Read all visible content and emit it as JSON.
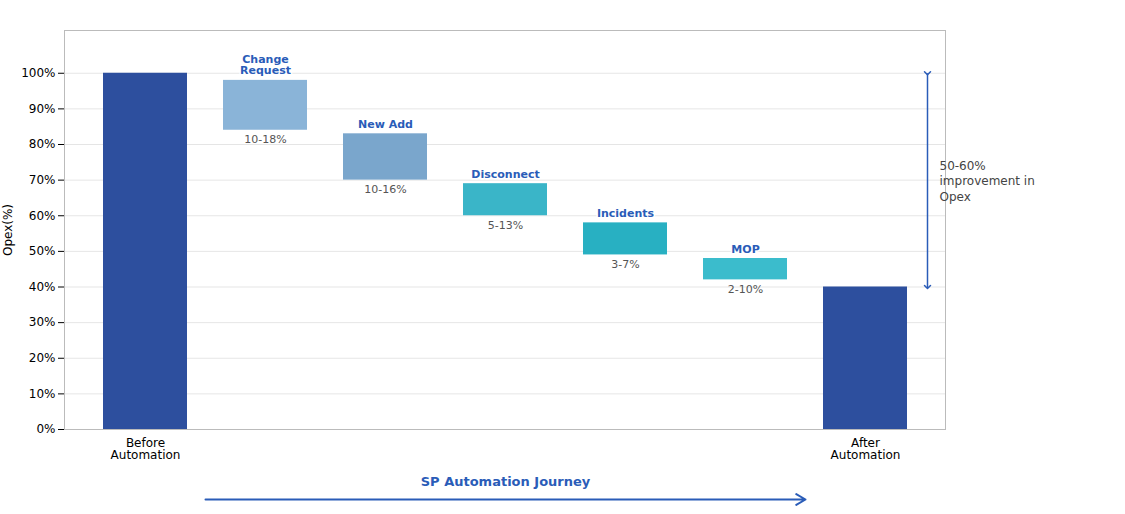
{
  "chart_data": {
    "type": "waterfall",
    "categories": [
      "Before\nAutomation",
      null,
      null,
      null,
      null,
      null,
      "After\nAutomation"
    ],
    "values": [
      100,
      14,
      13,
      9,
      9,
      6,
      40
    ],
    "bottoms": [
      0,
      84,
      70,
      60,
      49,
      42,
      0
    ],
    "colors": [
      "#2d4f9e",
      "#8ab4d8",
      "#7aa6cc",
      "#3ab5c8",
      "#28b0c2",
      "#3bbccc",
      "#2d4f9e"
    ],
    "range_labels": [
      null,
      "10-18%",
      "10-16%",
      "5-13%",
      "3-7%",
      "2-10%",
      null
    ],
    "callouts": {
      "labels": [
        null,
        "Change\nRequest",
        "New Add",
        "Disconnect",
        "Incidents",
        "MOP",
        null
      ],
      "color": "#2a5cb8"
    },
    "improvement": {
      "text": "50-60%\nimprovement in\nOpex",
      "from": 100,
      "to": 40,
      "color": "#2a5cb8"
    },
    "journey": {
      "text": "SP Automation Journey",
      "color": "#2a5cb8"
    },
    "ylabel": "Opex(%)",
    "ylim": [
      0,
      112
    ],
    "yticks": [
      {
        "value": 0,
        "label": "0%"
      },
      {
        "value": 10,
        "label": "10%"
      },
      {
        "value": 20,
        "label": "20%"
      },
      {
        "value": 30,
        "label": "30%"
      },
      {
        "value": 40,
        "label": "40%"
      },
      {
        "value": 50,
        "label": "50%"
      },
      {
        "value": 60,
        "label": "60%"
      },
      {
        "value": 70,
        "label": "70%"
      },
      {
        "value": 80,
        "label": "80%"
      },
      {
        "value": 90,
        "label": "90%"
      },
      {
        "value": 100,
        "label": "100%"
      }
    ],
    "grid": true
  }
}
